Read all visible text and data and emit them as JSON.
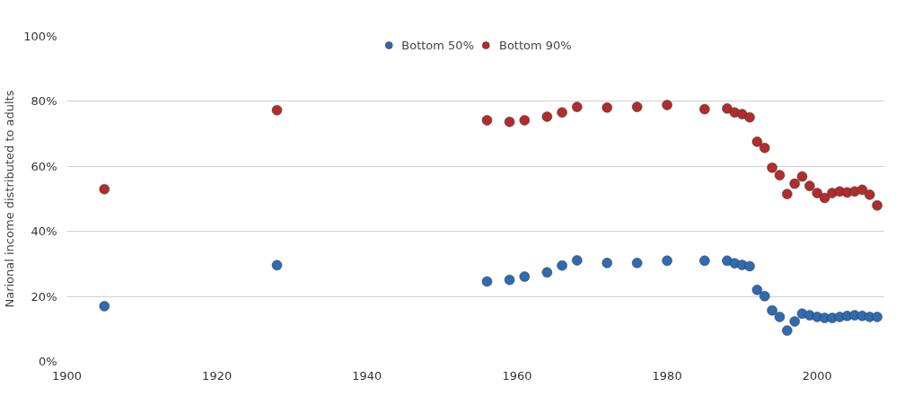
{
  "chart_data": {
    "type": "scatter",
    "ylabel": "Narional income distributed to adults",
    "x": [
      1905,
      1928,
      1956,
      1959,
      1961,
      1964,
      1966,
      1968,
      1972,
      1976,
      1980,
      1985,
      1988,
      1989,
      1990,
      1991,
      1992,
      1993,
      1994,
      1995,
      1996,
      1997,
      1998,
      1999,
      2000,
      2001,
      2002,
      2003,
      2004,
      2005,
      2006,
      2007,
      2008
    ],
    "series": [
      {
        "name": "Bottom 50%",
        "color": "#2e6bb0",
        "values": [
          17,
          29.6,
          24.6,
          25.1,
          26.1,
          27.4,
          29.5,
          31.1,
          30.3,
          30.3,
          31,
          31,
          31,
          30.2,
          29.7,
          29.3,
          22,
          20.1,
          15.7,
          13.7,
          9.5,
          12.3,
          14.7,
          14.2,
          13.7,
          13.4,
          13.4,
          13.7,
          14,
          14.2,
          14,
          13.7,
          13.7
        ]
      },
      {
        "name": "Bottom 90%",
        "color": "#b22c2c",
        "values": [
          53,
          77.3,
          74.2,
          73.7,
          74.2,
          75.3,
          76.6,
          78.3,
          78.1,
          78.3,
          78.9,
          77.6,
          77.8,
          76.6,
          76.1,
          75.1,
          67.6,
          65.7,
          59.6,
          57.3,
          51.5,
          54.7,
          56.9,
          54,
          51.8,
          50.3,
          51.8,
          52.3,
          52,
          52.3,
          52.8,
          51.3,
          48
        ]
      }
    ],
    "xlim": [
      1900,
      2009
    ],
    "xticks": [
      1900,
      1920,
      1940,
      1960,
      1980,
      2000
    ],
    "ylim": [
      0,
      100
    ],
    "yticks": [
      {
        "value": 0,
        "label": "0%"
      },
      {
        "value": 20,
        "label": "20%"
      },
      {
        "value": 40,
        "label": "40%"
      },
      {
        "value": 60,
        "label": "60%"
      },
      {
        "value": 80,
        "label": "80%"
      },
      {
        "value": 100,
        "label": "100%"
      }
    ],
    "grid": "y",
    "legend": "top",
    "marker": "circle"
  }
}
